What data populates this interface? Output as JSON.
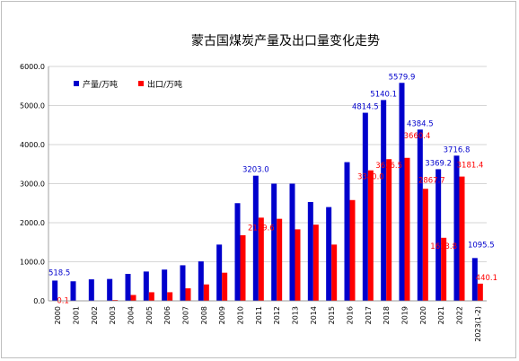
{
  "chart_data": {
    "type": "bar",
    "title": "蒙古国煤炭产量及出口量变化走势",
    "categories": [
      "2000",
      "2001",
      "2002",
      "2003",
      "2004",
      "2005",
      "2006",
      "2007",
      "2008",
      "2009",
      "2010",
      "2011",
      "2012",
      "2013",
      "2014",
      "2015",
      "2016",
      "2017",
      "2018",
      "2019",
      "2020",
      "2021",
      "2022",
      "2023(1-2)"
    ],
    "series": [
      {
        "name": "产量/万吨",
        "color": "#0000cc",
        "values": [
          518.5,
          500,
          550,
          560,
          690,
          750,
          800,
          910,
          1010,
          1440,
          2500,
          3203.0,
          3000,
          3000,
          2530,
          2400,
          3550,
          4814.5,
          5140.1,
          5579.9,
          4384.5,
          3369.2,
          3716.8,
          1095.5
        ]
      },
      {
        "name": "出口/万吨",
        "color": "#ff0000",
        "values": [
          0.1,
          0,
          0,
          20,
          150,
          220,
          220,
          320,
          420,
          720,
          1680,
          2129.6,
          2100,
          1830,
          1950,
          1440,
          2580,
          3340.0,
          3626.5,
          3660.4,
          2867.7,
          1613.8,
          3181.4,
          440.1
        ]
      }
    ],
    "data_labels": [
      {
        "series": 0,
        "index": 0,
        "text": "518.5"
      },
      {
        "series": 1,
        "index": 0,
        "text": "0.1"
      },
      {
        "series": 0,
        "index": 11,
        "text": "3203.0"
      },
      {
        "series": 1,
        "index": 11,
        "text": "2129.6"
      },
      {
        "series": 0,
        "index": 17,
        "text": "4814.5"
      },
      {
        "series": 1,
        "index": 17,
        "text": "3340.0"
      },
      {
        "series": 0,
        "index": 18,
        "text": "5140.1"
      },
      {
        "series": 1,
        "index": 18,
        "text": "3626.5"
      },
      {
        "series": 0,
        "index": 19,
        "text": "5579.9"
      },
      {
        "series": 1,
        "index": 19,
        "text": "3660.4"
      },
      {
        "series": 0,
        "index": 20,
        "text": "4384.5"
      },
      {
        "series": 1,
        "index": 20,
        "text": "2867.7"
      },
      {
        "series": 0,
        "index": 21,
        "text": "3369.2"
      },
      {
        "series": 1,
        "index": 21,
        "text": "1613.8"
      },
      {
        "series": 0,
        "index": 22,
        "text": "3716.8"
      },
      {
        "series": 1,
        "index": 22,
        "text": "3181.4"
      },
      {
        "series": 0,
        "index": 23,
        "text": "1095.5"
      },
      {
        "series": 1,
        "index": 23,
        "text": "440.1"
      }
    ],
    "y_ticks": [
      "0.0",
      "1000.0",
      "2000.0",
      "3000.0",
      "4000.0",
      "5000.0",
      "6000.0"
    ],
    "ylim": [
      0,
      6000
    ],
    "grid": true,
    "legend_position": "top-left"
  }
}
